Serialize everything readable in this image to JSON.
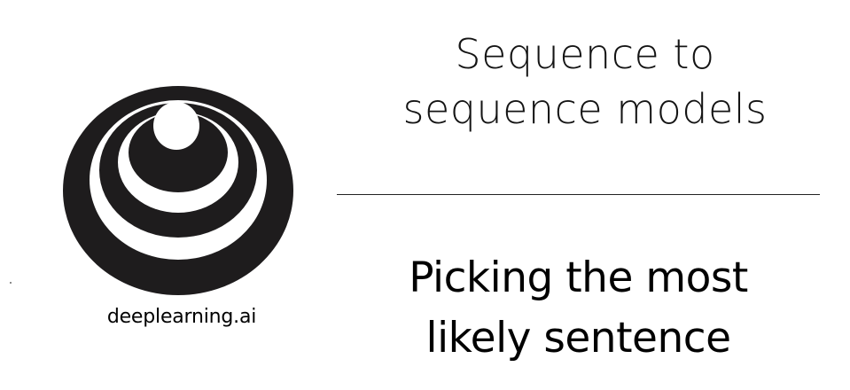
{
  "brand": {
    "name": "deeplearning.ai",
    "logo_icon": "concentric-rings-logo-icon"
  },
  "title": {
    "line1": "Sequence to",
    "line2": "sequence models"
  },
  "subtitle": {
    "line1": "Picking the most",
    "line2": "likely sentence"
  },
  "colors": {
    "ink": "#1e1c1d",
    "background": "#ffffff",
    "rule": "#222222"
  }
}
